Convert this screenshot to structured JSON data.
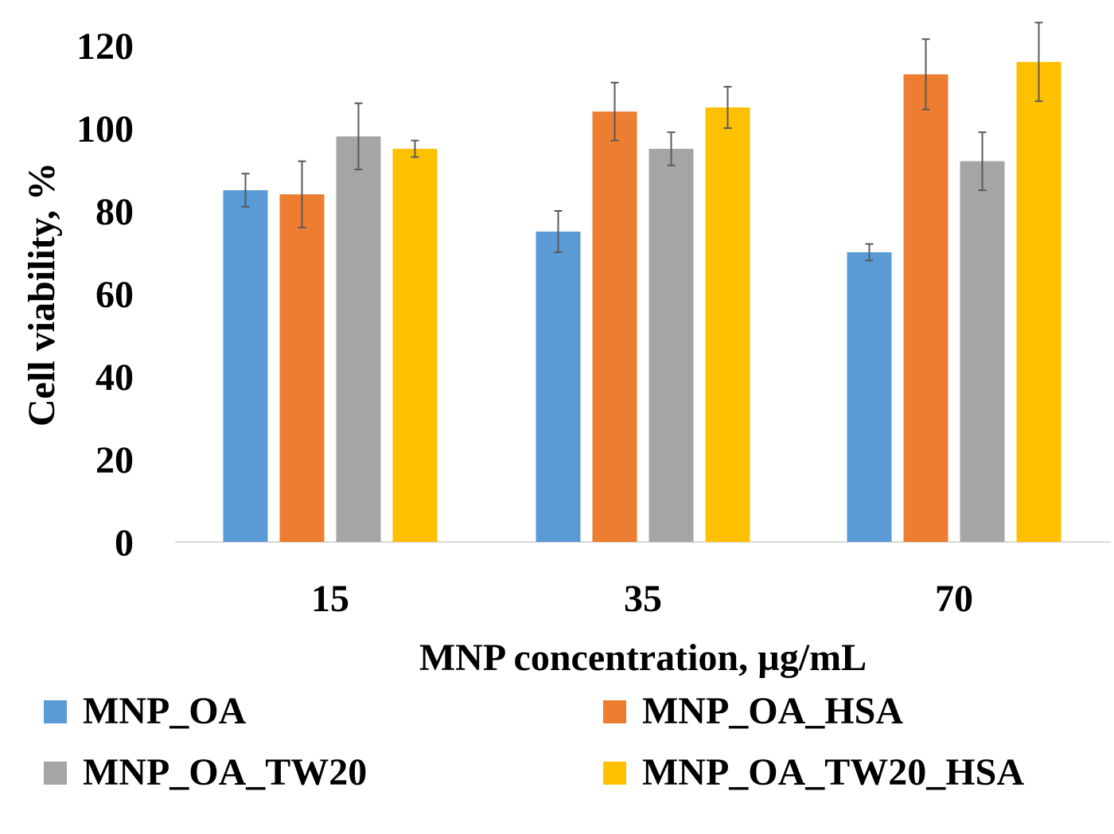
{
  "chart_data": {
    "type": "bar",
    "title": "",
    "xlabel": "MNP concentration, µg/mL",
    "ylabel": "Cell viability, %",
    "categories": [
      "15",
      "35",
      "70"
    ],
    "ylim": [
      0,
      120
    ],
    "yticks": [
      "0",
      "20",
      "40",
      "60",
      "80",
      "100",
      "120"
    ],
    "grid": false,
    "legend_position": "bottom",
    "series": [
      {
        "name": "MNP_OA",
        "color": "#5B9BD5",
        "values": [
          85,
          75,
          70
        ],
        "errors": [
          4,
          5,
          2
        ]
      },
      {
        "name": "MNP_OA_HSA",
        "color": "#ED7D31",
        "values": [
          84,
          104,
          113
        ],
        "errors": [
          8,
          7,
          8.5
        ]
      },
      {
        "name": "MNP_OA_TW20",
        "color": "#A5A5A5",
        "values": [
          98,
          95,
          92
        ],
        "errors": [
          8,
          4,
          7
        ]
      },
      {
        "name": "MNP_OA_TW20_HSA",
        "color": "#FFC000",
        "values": [
          95,
          105,
          116
        ],
        "errors": [
          2,
          5,
          9.5
        ]
      }
    ]
  }
}
